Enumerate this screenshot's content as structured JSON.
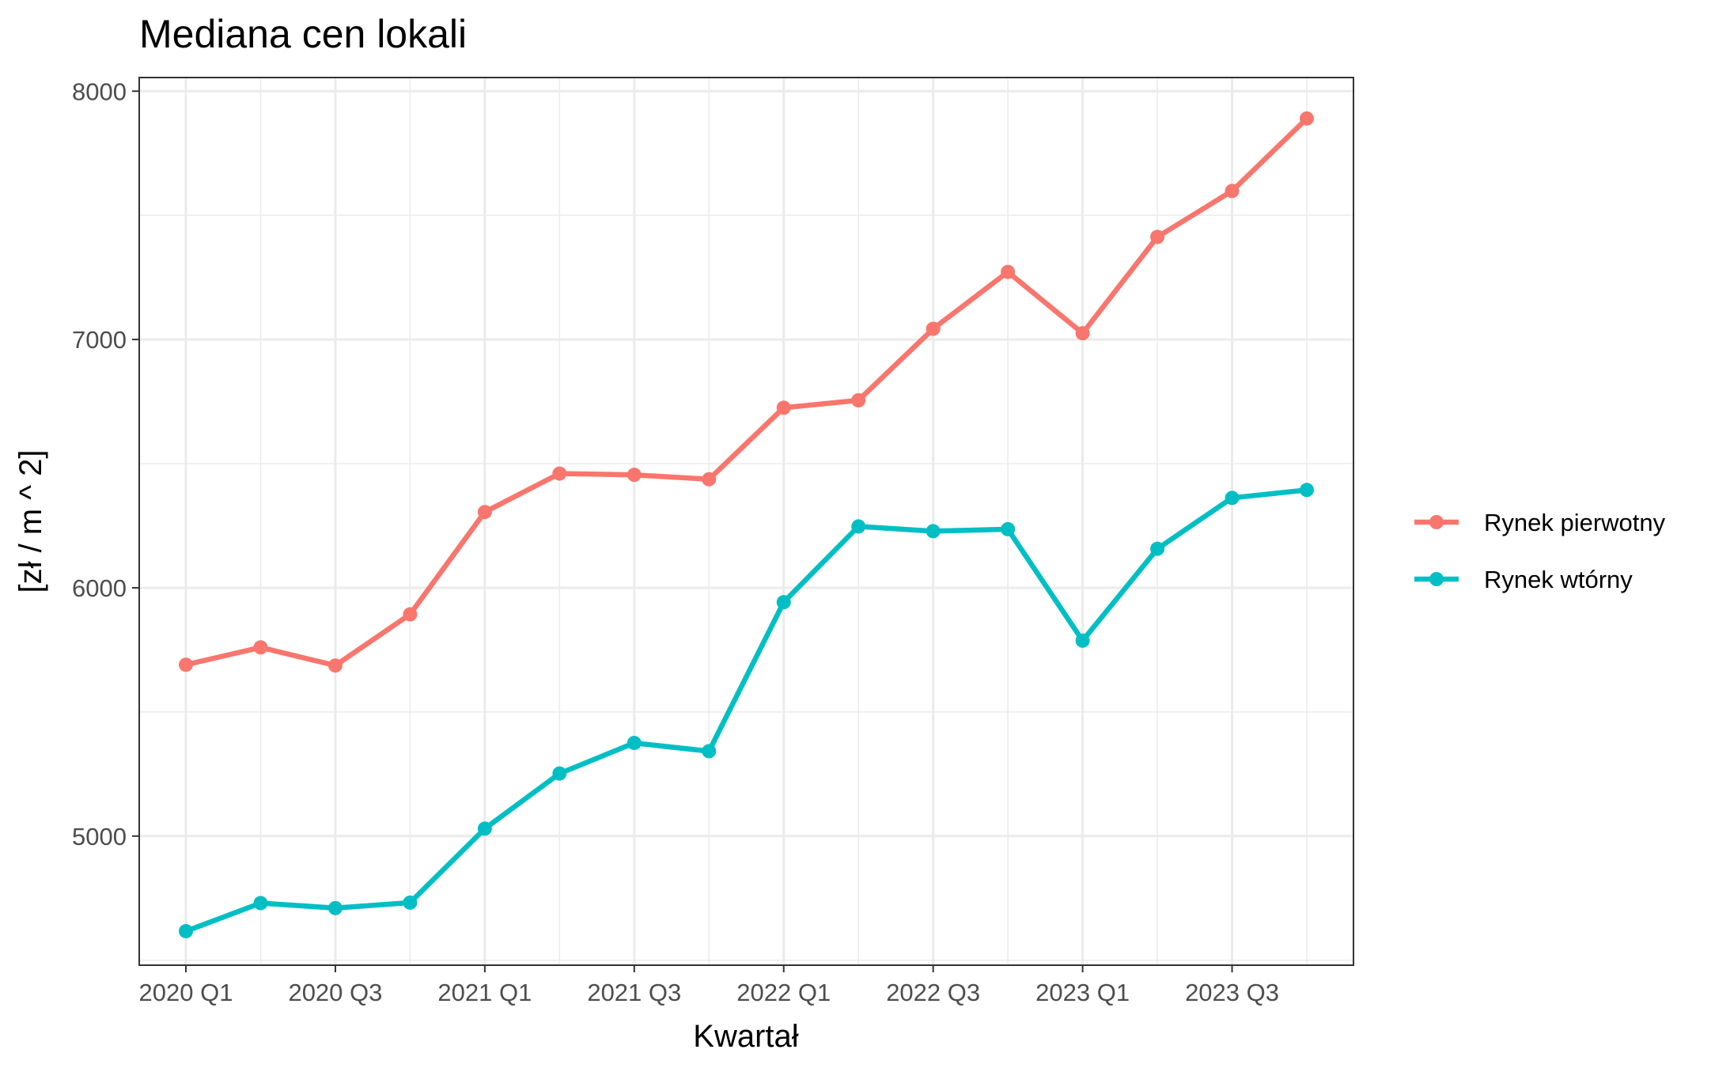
{
  "chart_data": {
    "type": "line",
    "title": "Mediana cen lokali",
    "xlabel": "Kwartał",
    "ylabel": "[zł / m ^ 2]",
    "x": [
      "2020 Q1",
      "2020 Q2",
      "2020 Q3",
      "2020 Q4",
      "2021 Q1",
      "2021 Q2",
      "2021 Q3",
      "2021 Q4",
      "2022 Q1",
      "2022 Q2",
      "2022 Q3",
      "2022 Q4",
      "2023 Q1",
      "2023 Q2",
      "2023 Q3",
      "2023 Q4"
    ],
    "x_tick_labels": [
      "2020 Q1",
      "2020 Q3",
      "2021 Q1",
      "2021 Q3",
      "2022 Q1",
      "2022 Q3",
      "2023 Q1",
      "2023 Q3"
    ],
    "ylim": [
      4480,
      8055
    ],
    "y_ticks": [
      5000,
      6000,
      7000,
      8000
    ],
    "grid": true,
    "legend_position": "right",
    "series": [
      {
        "name": "Rynek pierwotny",
        "color": "#F8766D",
        "values": [
          5690,
          5760,
          5687,
          5893,
          6305,
          6460,
          6455,
          6437,
          6725,
          6755,
          7043,
          7272,
          7025,
          7413,
          7598,
          7890
        ]
      },
      {
        "name": "Rynek wtórny",
        "color": "#00BFC4",
        "values": [
          4617,
          4730,
          4710,
          4732,
          5030,
          5252,
          5375,
          5342,
          5942,
          6247,
          6228,
          6236,
          5787,
          6157,
          6362,
          6394
        ]
      }
    ]
  }
}
